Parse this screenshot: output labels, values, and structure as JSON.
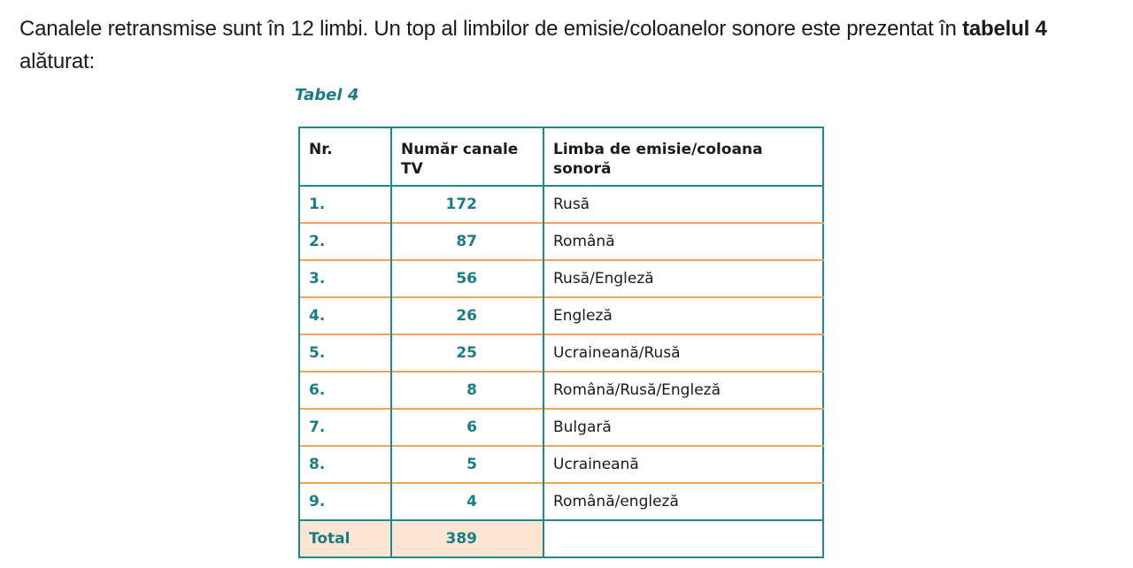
{
  "intro": {
    "text_before": "Canalele retransmise sunt în 12 limbi. Un top al limbilor de emisie/coloanelor sonore este prezentat în ",
    "bold": "tabelul 4",
    "text_after": " alăturat:"
  },
  "caption": "Tabel 4",
  "table": {
    "headers": [
      "Nr.",
      "Număr canale TV",
      "Limba de emisie/coloana sonoră"
    ],
    "rows": [
      {
        "nr": "1.",
        "count": "172",
        "language": "Rusă"
      },
      {
        "nr": "2.",
        "count": "87",
        "language": "Română"
      },
      {
        "nr": "3.",
        "count": "56",
        "language": "Rusă/Engleză"
      },
      {
        "nr": "4.",
        "count": "26",
        "language": "Engleză"
      },
      {
        "nr": "5.",
        "count": "25",
        "language": "Ucraineană/Rusă"
      },
      {
        "nr": "6.",
        "count": "8",
        "language": "Română/Rusă/Engleză"
      },
      {
        "nr": "7.",
        "count": "6",
        "language": "Bulgară"
      },
      {
        "nr": "8.",
        "count": "5",
        "language": "Ucraineană"
      },
      {
        "nr": "9.",
        "count": "4",
        "language": "Română/engleză"
      }
    ],
    "total": {
      "label": "Total",
      "count": "389",
      "language": ""
    }
  },
  "colors": {
    "border_teal": "#1f8a8c",
    "text_teal": "#1b7c84",
    "row_divider_orange": "#f0a35a",
    "total_fill": "#fbe6d4"
  }
}
